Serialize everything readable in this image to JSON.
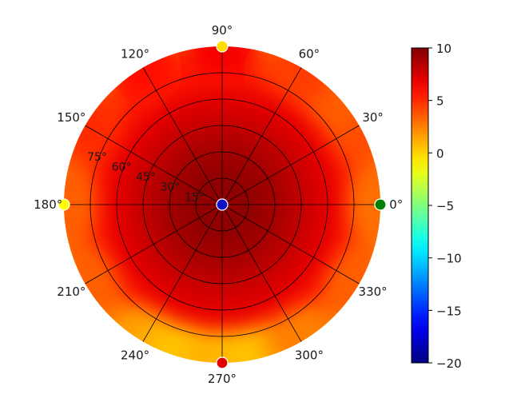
{
  "chart_data": {
    "type": "heatmap",
    "projection": "polar",
    "angular_ticks": [
      "0°",
      "30°",
      "60°",
      "90°",
      "120°",
      "150°",
      "180°",
      "210°",
      "240°",
      "270°",
      "300°",
      "330°"
    ],
    "angular_tick_values_deg": [
      0,
      30,
      60,
      90,
      120,
      150,
      180,
      210,
      240,
      270,
      300,
      330
    ],
    "radial_ticks": [
      "15°",
      "30°",
      "45°",
      "60°",
      "75°"
    ],
    "radial_tick_values": [
      15,
      30,
      45,
      60,
      75
    ],
    "rlim": [
      0,
      90
    ],
    "grid": true,
    "colormap": "jet",
    "colorbar": {
      "position": "right",
      "vmin": -20,
      "vmax": 10,
      "ticks": [
        10,
        5,
        0,
        -5,
        -10,
        -15,
        -20
      ],
      "tick_labels": [
        "10",
        "5",
        "0",
        "−5",
        "−10",
        "−15",
        "−20"
      ]
    },
    "field_samples": {
      "note_units": "theta in degrees, r in degrees, value in colorbar units",
      "radial_profile": [
        {
          "r": 0,
          "value": 9.5
        },
        {
          "r": 15,
          "value": 9.5
        },
        {
          "r": 30,
          "value": 9.0
        },
        {
          "r": 45,
          "value": 8.0
        },
        {
          "r": 60,
          "value": 7.0
        },
        {
          "r": 75,
          "value": 5.5
        },
        {
          "r": 90,
          "value": 3.0
        }
      ],
      "rim_values": [
        {
          "theta": 0,
          "value": 3.0
        },
        {
          "theta": 30,
          "value": 4.0
        },
        {
          "theta": 45,
          "value": 3.5
        },
        {
          "theta": 60,
          "value": 4.5
        },
        {
          "theta": 90,
          "value": 6.5
        },
        {
          "theta": 120,
          "value": 6.0
        },
        {
          "theta": 150,
          "value": 5.0
        },
        {
          "theta": 180,
          "value": 3.5
        },
        {
          "theta": 210,
          "value": 3.5
        },
        {
          "theta": 240,
          "value": 1.5
        },
        {
          "theta": 255,
          "value": 0.5
        },
        {
          "theta": 270,
          "value": 1.0
        },
        {
          "theta": 285,
          "value": 0.5
        },
        {
          "theta": 300,
          "value": 2.5
        },
        {
          "theta": 330,
          "value": 3.5
        }
      ]
    },
    "markers": [
      {
        "theta": 0,
        "r": 90,
        "value": -4.0,
        "color": "#008000"
      },
      {
        "theta": 90,
        "r": 90,
        "value": 1.0,
        "color": "#ffdd00"
      },
      {
        "theta": 180,
        "r": 90,
        "value": 0.5,
        "color": "#ffff00"
      },
      {
        "theta": 270,
        "r": 90,
        "value": 8.0,
        "color": "#e00000"
      },
      {
        "theta": 0,
        "r": 0,
        "value": -17.0,
        "color": "#1010c8"
      }
    ]
  }
}
